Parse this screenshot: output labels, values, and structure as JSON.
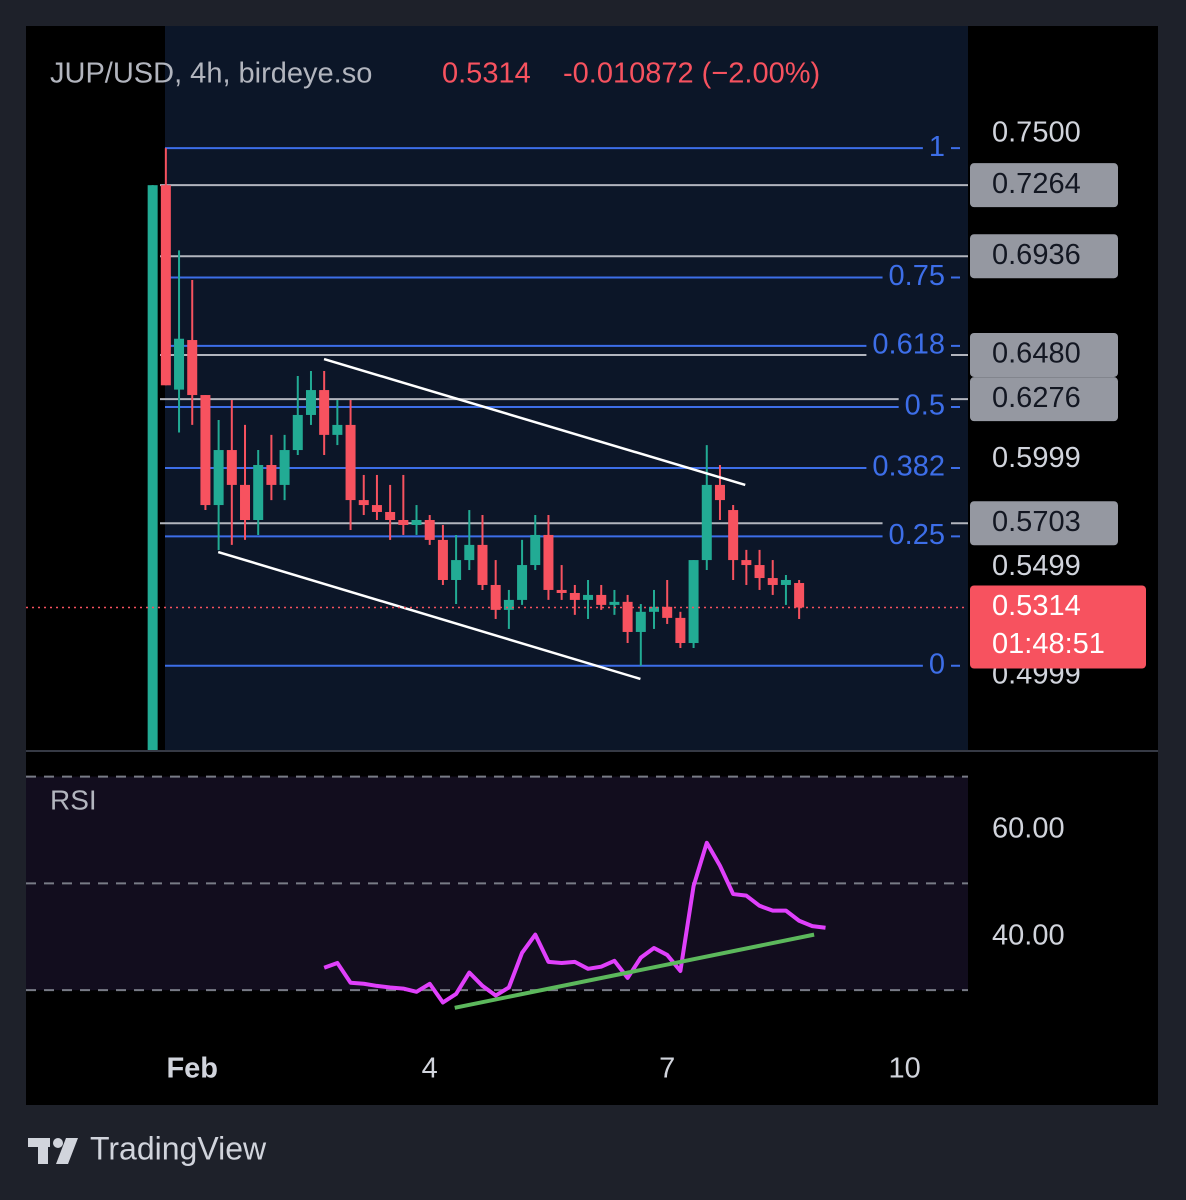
{
  "chart_data": {
    "type": "candlestick",
    "title": "JUP/USD, 4h, birdeye.so",
    "change": "-0.010872 (−2.00%)",
    "last_price": 0.5314,
    "countdown": "01:48:51",
    "up_color": "#22ab94",
    "down_color": "#f7525f",
    "xlim": [
      -1.1,
      10.8
    ],
    "xticks": [
      {
        "value": 1,
        "label": "Feb"
      },
      4,
      7,
      10
    ],
    "ylim": [
      0.4656,
      0.7999
    ],
    "yticks": [
      {
        "value": 0.75,
        "label": "0.7500"
      },
      {
        "value": 0.5999,
        "label": "0.5999"
      },
      {
        "value": 0.5499,
        "label": "0.5499"
      },
      {
        "value": 0.4999,
        "label": "0.4999"
      }
    ],
    "x": [
      0.5,
      0.6667,
      0.8333,
      1,
      1.1667,
      1.3333,
      1.5,
      1.6667,
      1.8333,
      2,
      2.1667,
      2.3333,
      2.5,
      2.6667,
      2.8333,
      3,
      3.1667,
      3.3333,
      3.5,
      3.6667,
      3.8333,
      4,
      4.1667,
      4.3333,
      4.5,
      4.6667,
      4.8333,
      5,
      5.1667,
      5.3333,
      5.5,
      5.6667,
      5.8333,
      6,
      6.1667,
      6.3333,
      6.5,
      6.6667,
      6.8333,
      7,
      7.1667,
      7.3333,
      7.5,
      7.6667,
      7.8333,
      8,
      8.1667,
      8.3333,
      8.5,
      8.6667
    ],
    "open": [
      0.462,
      0.7264,
      0.632,
      0.6549,
      0.6295,
      0.5787,
      0.6041,
      0.588,
      0.5718,
      0.5972,
      0.588,
      0.6041,
      0.6203,
      0.6318,
      0.6111,
      0.6157,
      0.581,
      0.5787,
      0.5755,
      0.5718,
      0.5695,
      0.5718,
      0.5626,
      0.5441,
      0.5533,
      0.5603,
      0.5418,
      0.5303,
      0.5349,
      0.551,
      0.5649,
      0.5395,
      0.5381,
      0.5349,
      0.5372,
      0.5326,
      0.534,
      0.5201,
      0.5294,
      0.5317,
      0.5266,
      0.515,
      0.5533,
      0.588,
      0.5764,
      0.5533,
      0.551,
      0.545,
      0.5418,
      0.5427
    ],
    "high": [
      0.7264,
      0.7435,
      0.6963,
      0.6826,
      0.6295,
      0.618,
      0.6272,
      0.6157,
      0.6041,
      0.6111,
      0.6111,
      0.6383,
      0.6406,
      0.6406,
      0.6272,
      0.6272,
      0.5926,
      0.5926,
      0.588,
      0.5926,
      0.5787,
      0.5741,
      0.5695,
      0.5649,
      0.5764,
      0.5741,
      0.5533,
      0.5395,
      0.5626,
      0.5741,
      0.5741,
      0.551,
      0.5418,
      0.5441,
      0.5418,
      0.5395,
      0.5372,
      0.533,
      0.5395,
      0.5441,
      0.5294,
      0.5533,
      0.6064,
      0.5972,
      0.5787,
      0.558,
      0.558,
      0.5533,
      0.5464,
      0.5441
    ],
    "low": [
      0.462,
      0.634,
      0.6122,
      0.6157,
      0.5764,
      0.5579,
      0.5603,
      0.5626,
      0.5649,
      0.581,
      0.581,
      0.6018,
      0.6157,
      0.6018,
      0.6064,
      0.5672,
      0.5741,
      0.5718,
      0.5626,
      0.5649,
      0.5649,
      0.5603,
      0.5418,
      0.533,
      0.5487,
      0.5395,
      0.5261,
      0.5215,
      0.5326,
      0.5487,
      0.5349,
      0.5349,
      0.528,
      0.5261,
      0.5303,
      0.528,
      0.515,
      0.5045,
      0.5215,
      0.5238,
      0.5127,
      0.5127,
      0.5487,
      0.5718,
      0.5441,
      0.5418,
      0.5395,
      0.5372,
      0.5326,
      0.5261
    ],
    "close": [
      0.7264,
      0.634,
      0.6555,
      0.6295,
      0.5787,
      0.6041,
      0.588,
      0.5718,
      0.5972,
      0.588,
      0.6041,
      0.6203,
      0.6318,
      0.6111,
      0.6157,
      0.581,
      0.5787,
      0.5755,
      0.5718,
      0.5695,
      0.5718,
      0.5626,
      0.5441,
      0.5533,
      0.5603,
      0.5418,
      0.5303,
      0.5349,
      0.551,
      0.5649,
      0.5395,
      0.5381,
      0.5349,
      0.5372,
      0.5326,
      0.534,
      0.5201,
      0.5294,
      0.5317,
      0.5266,
      0.515,
      0.5533,
      0.588,
      0.581,
      0.5533,
      0.551,
      0.545,
      0.5418,
      0.5441,
      0.5314
    ],
    "price_lines": [
      {
        "value": 0.7264,
        "label": "0.7264"
      },
      {
        "value": 0.6936,
        "label": "0.6936"
      },
      {
        "value": 0.648,
        "label": "0.6480"
      },
      {
        "value": 0.6276,
        "label": "0.6276"
      },
      {
        "value": 0.5703,
        "label": "0.5703"
      }
    ],
    "fib": {
      "low": 0.5045,
      "high": 0.7435,
      "levels": [
        1,
        0.75,
        0.618,
        0.5,
        0.382,
        0.25,
        0
      ],
      "color": "#3d6ee8"
    },
    "trendlines": [
      {
        "x": [
          2.665,
          7.986
        ],
        "values": [
          0.6461,
          0.588
        ]
      },
      {
        "x": [
          1.328,
          6.662
        ],
        "values": [
          0.557,
          0.4984
        ]
      }
    ],
    "rsi": {
      "title": "RSI",
      "color": "#e040fb",
      "ylim": [
        18.8,
        74.6
      ],
      "yticks": [
        {
          "value": 60,
          "label": "60.00"
        },
        {
          "value": 40,
          "label": "40.00"
        }
      ],
      "bands": [
        70,
        50,
        30
      ],
      "x": [
        2.6667,
        2.8333,
        3,
        3.1667,
        3.3333,
        3.5,
        3.6667,
        3.8333,
        4,
        4.1667,
        4.3333,
        4.5,
        4.6667,
        4.8333,
        5,
        5.1667,
        5.3333,
        5.5,
        5.6667,
        5.8333,
        6,
        6.1667,
        6.3333,
        6.5,
        6.6667,
        6.8333,
        7,
        7.1667,
        7.3333,
        7.5,
        7.6667,
        7.8333,
        8,
        8.1667,
        8.3333,
        8.5,
        8.6667,
        8.8333,
        9
      ],
      "values": [
        34.2,
        35.1,
        31.4,
        31.2,
        30.8,
        30.5,
        30.3,
        29.7,
        31.2,
        27.7,
        29.3,
        33.3,
        30.8,
        29.0,
        30.5,
        37.0,
        40.4,
        35.3,
        35.1,
        35.3,
        34.0,
        34.4,
        35.5,
        32.3,
        36.1,
        37.9,
        36.6,
        33.6,
        49.5,
        57.6,
        53.3,
        48.0,
        47.7,
        45.8,
        44.9,
        44.9,
        43.0,
        42.0,
        41.7
      ],
      "trendline": {
        "x": [
          4.316,
          8.856
        ],
        "values": [
          26.7,
          40.4
        ],
        "color": "#5cb85c"
      }
    }
  },
  "footer": {
    "brand": "TradingView"
  }
}
